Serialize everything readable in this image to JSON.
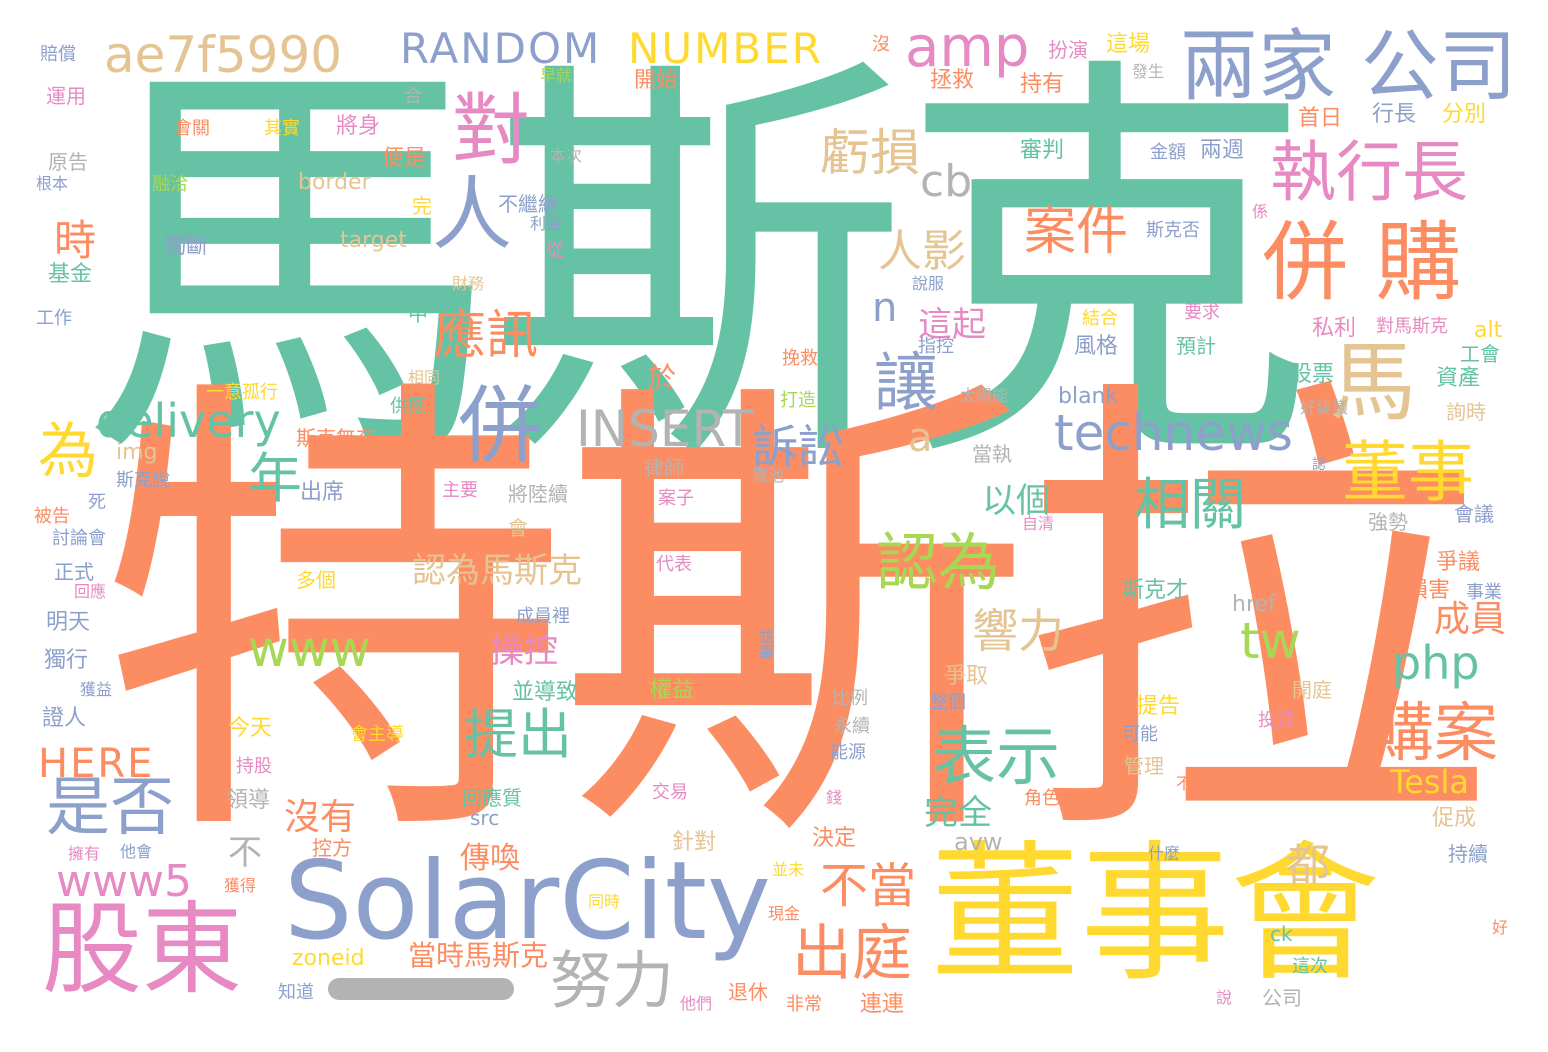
{
  "words": [
    {
      "t": "特斯拉",
      "c": "#fc8d62"
    },
    {
      "t": "馬斯克",
      "c": "#66c2a5"
    },
    {
      "t": "董事會",
      "c": "#ffd92f"
    },
    {
      "t": "SolarCity",
      "c": "#8da0cb"
    },
    {
      "t": "股東",
      "c": "#e78ac3"
    },
    {
      "t": "兩家 公司",
      "c": "#8da0cb"
    },
    {
      "t": "ae7f5990",
      "c": "#e5c494"
    },
    {
      "t": "RANDOM",
      "c": "#8da0cb"
    },
    {
      "t": "NUMBER",
      "c": "#ffd92f"
    },
    {
      "t": "amp",
      "c": "#e78ac3"
    },
    {
      "t": "對",
      "c": "#e78ac3"
    },
    {
      "t": "人",
      "c": "#8da0cb"
    },
    {
      "t": "執行長",
      "c": "#e78ac3"
    },
    {
      "t": "併 購",
      "c": "#fc8d62"
    },
    {
      "t": "馬",
      "c": "#e5c494"
    },
    {
      "t": "虧損",
      "c": "#e5c494"
    },
    {
      "t": "cb",
      "c": "#b3b3b3"
    },
    {
      "t": "案件",
      "c": "#fc8d62"
    },
    {
      "t": "人影",
      "c": "#e5c494"
    },
    {
      "t": "應訊",
      "c": "#fc8d62"
    },
    {
      "t": "併",
      "c": "#8da0cb"
    },
    {
      "t": "讓",
      "c": "#8da0cb"
    },
    {
      "t": "technews",
      "c": "#8da0cb"
    },
    {
      "t": "delivery",
      "c": "#66c2a5"
    },
    {
      "t": "INSERT",
      "c": "#b3b3b3"
    },
    {
      "t": "為",
      "c": "#ffd92f"
    },
    {
      "t": "訴訟",
      "c": "#8da0cb"
    },
    {
      "t": "董事",
      "c": "#ffd92f"
    },
    {
      "t": "年",
      "c": "#66c2a5"
    },
    {
      "t": "相關",
      "c": "#66c2a5"
    },
    {
      "t": "以個",
      "c": "#66c2a5"
    },
    {
      "t": "認為",
      "c": "#a6d854"
    },
    {
      "t": "認為馬斯克",
      "c": "#e5c494"
    },
    {
      "t": "www",
      "c": "#a6d854"
    },
    {
      "t": "tw",
      "c": "#a6d854"
    },
    {
      "t": "響力",
      "c": "#e5c494"
    },
    {
      "t": "php",
      "c": "#66c2a5"
    },
    {
      "t": "成員",
      "c": "#fc8d62"
    },
    {
      "t": "是否",
      "c": "#8da0cb"
    },
    {
      "t": "HERE",
      "c": "#fc8d62"
    },
    {
      "t": "提出",
      "c": "#66c2a5"
    },
    {
      "t": "表示",
      "c": "#66c2a5"
    },
    {
      "t": "購案",
      "c": "#fc8d62"
    },
    {
      "t": "www5",
      "c": "#e78ac3"
    },
    {
      "t": "沒有",
      "c": "#fc8d62"
    },
    {
      "t": "不當",
      "c": "#fc8d62"
    },
    {
      "t": "出庭",
      "c": "#fc8d62"
    },
    {
      "t": "努力",
      "c": "#b3b3b3"
    },
    {
      "t": "都",
      "c": "#e5c494"
    },
    {
      "t": "Tesla",
      "c": "#ffd92f"
    },
    {
      "t": "完全",
      "c": "#66c2a5"
    },
    {
      "t": "avw",
      "c": "#b3b3b3"
    },
    {
      "t": "傳喚",
      "c": "#fc8d62"
    },
    {
      "t": "操控",
      "c": "#e78ac3"
    },
    {
      "t": "時",
      "c": "#fc8d62"
    },
    {
      "t": "a",
      "c": "#e5c494"
    },
    {
      "t": "n",
      "c": "#8da0cb"
    },
    {
      "t": "這起",
      "c": "#e78ac3"
    },
    {
      "t": "border",
      "c": "#e5c494"
    },
    {
      "t": "target",
      "c": "#e5c494"
    },
    {
      "t": "img",
      "c": "#e5c494"
    },
    {
      "t": "zoneid",
      "c": "#ffd92f"
    },
    {
      "t": "當時馬斯克",
      "c": "#fc8d62"
    },
    {
      "t": "blank",
      "c": "#8da0cb"
    },
    {
      "t": "alt",
      "c": "#ffd92f"
    },
    {
      "t": "href",
      "c": "#b3b3b3"
    },
    {
      "t": "src",
      "c": "#8da0cb"
    },
    {
      "t": "ck",
      "c": "#66c2a5"
    },
    {
      "t": "賠償",
      "c": "#8da0cb"
    },
    {
      "t": "運用",
      "c": "#e78ac3"
    },
    {
      "t": "合",
      "c": "#b3b3b3"
    },
    {
      "t": "原告",
      "c": "#b3b3b3"
    },
    {
      "t": "根本",
      "c": "#8da0cb"
    },
    {
      "t": "會關",
      "c": "#fc8d62"
    },
    {
      "t": "其實",
      "c": "#ffd92f"
    },
    {
      "t": "將身",
      "c": "#e78ac3"
    },
    {
      "t": "便是",
      "c": "#fc8d62"
    },
    {
      "t": "本次",
      "c": "#b3b3b3"
    },
    {
      "t": "融洽",
      "c": "#a6d854"
    },
    {
      "t": "完",
      "c": "#ffd92f"
    },
    {
      "t": "不繼續",
      "c": "#8da0cb"
    },
    {
      "t": "利益",
      "c": "#8da0cb"
    },
    {
      "t": "獨斷",
      "c": "#8da0cb"
    },
    {
      "t": "從",
      "c": "#e78ac3"
    },
    {
      "t": "基金",
      "c": "#66c2a5"
    },
    {
      "t": "工作",
      "c": "#8da0cb"
    },
    {
      "t": "財務",
      "c": "#e5c494"
    },
    {
      "t": "中",
      "c": "#66c2a5"
    },
    {
      "t": "一意孤行",
      "c": "#ffd92f"
    },
    {
      "t": "相同",
      "c": "#e5c494"
    },
    {
      "t": "於",
      "c": "#fc8d62"
    },
    {
      "t": "供應",
      "c": "#66c2a5"
    },
    {
      "t": "斯克無奈",
      "c": "#fc8d62"
    },
    {
      "t": "斯克說",
      "c": "#8da0cb"
    },
    {
      "t": "律師",
      "c": "#b3b3b3"
    },
    {
      "t": "出席",
      "c": "#8da0cb"
    },
    {
      "t": "主要",
      "c": "#e78ac3"
    },
    {
      "t": "將陸續",
      "c": "#b3b3b3"
    },
    {
      "t": "案子",
      "c": "#e78ac3"
    },
    {
      "t": "死",
      "c": "#8da0cb"
    },
    {
      "t": "被告",
      "c": "#fc8d62"
    },
    {
      "t": "討論會",
      "c": "#8da0cb"
    },
    {
      "t": "會",
      "c": "#e5c494"
    },
    {
      "t": "正式",
      "c": "#8da0cb"
    },
    {
      "t": "回應",
      "c": "#e78ac3"
    },
    {
      "t": "多個",
      "c": "#ffd92f"
    },
    {
      "t": "代表",
      "c": "#e78ac3"
    },
    {
      "t": "成員裡",
      "c": "#8da0cb"
    },
    {
      "t": "明天",
      "c": "#8da0cb"
    },
    {
      "t": "獨行",
      "c": "#8da0cb"
    },
    {
      "t": "獲益",
      "c": "#8da0cb"
    },
    {
      "t": "證人",
      "c": "#8da0cb"
    },
    {
      "t": "並導致",
      "c": "#66c2a5"
    },
    {
      "t": "權益",
      "c": "#a6d854"
    },
    {
      "t": "今天",
      "c": "#ffd92f"
    },
    {
      "t": "會主導",
      "c": "#ffd92f"
    },
    {
      "t": "持股",
      "c": "#e78ac3"
    },
    {
      "t": "領導",
      "c": "#b3b3b3"
    },
    {
      "t": "回應質",
      "c": "#66c2a5"
    },
    {
      "t": "交易",
      "c": "#e78ac3"
    },
    {
      "t": "不",
      "c": "#b3b3b3"
    },
    {
      "t": "擁有",
      "c": "#e78ac3"
    },
    {
      "t": "他會",
      "c": "#8da0cb"
    },
    {
      "t": "控方",
      "c": "#fc8d62"
    },
    {
      "t": "獲得",
      "c": "#fc8d62"
    },
    {
      "t": "知道",
      "c": "#8da0cb"
    },
    {
      "t": "早就",
      "c": "#a6d854"
    },
    {
      "t": "開始",
      "c": "#fc8d62"
    },
    {
      "t": "沒",
      "c": "#fc8d62"
    },
    {
      "t": "扮演",
      "c": "#e78ac3"
    },
    {
      "t": "持有",
      "c": "#fc8d62"
    },
    {
      "t": "這場",
      "c": "#ffd92f"
    },
    {
      "t": "發生",
      "c": "#b3b3b3"
    },
    {
      "t": "拯救",
      "c": "#fc8d62"
    },
    {
      "t": "審判",
      "c": "#66c2a5"
    },
    {
      "t": "金額",
      "c": "#8da0cb"
    },
    {
      "t": "兩週",
      "c": "#8da0cb"
    },
    {
      "t": "首日",
      "c": "#fc8d62"
    },
    {
      "t": "行長",
      "c": "#8da0cb"
    },
    {
      "t": "分別",
      "c": "#ffd92f"
    },
    {
      "t": "斯克否",
      "c": "#8da0cb"
    },
    {
      "t": "係",
      "c": "#e78ac3"
    },
    {
      "t": "說服",
      "c": "#8da0cb"
    },
    {
      "t": "要求",
      "c": "#e78ac3"
    },
    {
      "t": "結合",
      "c": "#ffd92f"
    },
    {
      "t": "私利",
      "c": "#e78ac3"
    },
    {
      "t": "對馬斯克",
      "c": "#e78ac3"
    },
    {
      "t": "指控",
      "c": "#8da0cb"
    },
    {
      "t": "風格",
      "c": "#8da0cb"
    },
    {
      "t": "預計",
      "c": "#66c2a5"
    },
    {
      "t": "工會",
      "c": "#66c2a5"
    },
    {
      "t": "挽救",
      "c": "#fc8d62"
    },
    {
      "t": "股票",
      "c": "#66c2a5"
    },
    {
      "t": "資產",
      "c": "#66c2a5"
    },
    {
      "t": "詢時",
      "c": "#e5c494"
    },
    {
      "t": "打造",
      "c": "#a6d854"
    },
    {
      "t": "太陽能",
      "c": "#b3b3b3"
    },
    {
      "t": "好建議",
      "c": "#b3b3b3"
    },
    {
      "t": "電池",
      "c": "#b3b3b3"
    },
    {
      "t": "當執",
      "c": "#b3b3b3"
    },
    {
      "t": "認",
      "c": "#8da0cb"
    },
    {
      "t": "自清",
      "c": "#e78ac3"
    },
    {
      "t": "強勢",
      "c": "#b3b3b3"
    },
    {
      "t": "會議",
      "c": "#8da0cb"
    },
    {
      "t": "爭議",
      "c": "#fc8d62"
    },
    {
      "t": "斯克才",
      "c": "#66c2a5"
    },
    {
      "t": "損害",
      "c": "#fc8d62"
    },
    {
      "t": "事業",
      "c": "#8da0cb"
    },
    {
      "t": "並事",
      "c": "#8da0cb"
    },
    {
      "t": "爭取",
      "c": "#e5c494"
    },
    {
      "t": "比例",
      "c": "#b3b3b3"
    },
    {
      "t": "整個",
      "c": "#8da0cb"
    },
    {
      "t": "永續",
      "c": "#b3b3b3"
    },
    {
      "t": "能源",
      "c": "#8da0cb"
    },
    {
      "t": "提告",
      "c": "#ffd92f"
    },
    {
      "t": "開庭",
      "c": "#e5c494"
    },
    {
      "t": "投資",
      "c": "#e78ac3"
    },
    {
      "t": "可能",
      "c": "#8da0cb"
    },
    {
      "t": "管理",
      "c": "#e5c494"
    },
    {
      "t": "不要",
      "c": "#fc8d62"
    },
    {
      "t": "角色",
      "c": "#fc8d62"
    },
    {
      "t": "錢",
      "c": "#e78ac3"
    },
    {
      "t": "決定",
      "c": "#fc8d62"
    },
    {
      "t": "針對",
      "c": "#e5c494"
    },
    {
      "t": "促成",
      "c": "#e5c494"
    },
    {
      "t": "持續",
      "c": "#8da0cb"
    },
    {
      "t": "什麼",
      "c": "#8da0cb"
    },
    {
      "t": "並未",
      "c": "#ffd92f"
    },
    {
      "t": "現金",
      "c": "#fc8d62"
    },
    {
      "t": "同時",
      "c": "#ffd92f"
    },
    {
      "t": "退休",
      "c": "#fc8d62"
    },
    {
      "t": "非常",
      "c": "#fc8d62"
    },
    {
      "t": "連連",
      "c": "#fc8d62"
    },
    {
      "t": "他們",
      "c": "#e78ac3"
    },
    {
      "t": "這次",
      "c": "#66c2a5"
    },
    {
      "t": "說",
      "c": "#e78ac3"
    },
    {
      "t": "公司",
      "c": "#b3b3b3"
    },
    {
      "t": "好",
      "c": "#fc8d62"
    }
  ]
}
